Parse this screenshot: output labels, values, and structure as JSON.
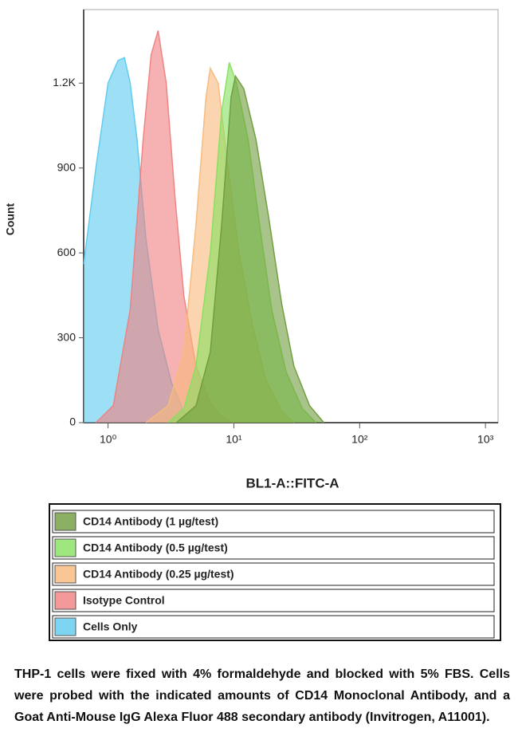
{
  "chart_data": {
    "type": "density",
    "ylabel": "Count",
    "xlabel": "BL1-A::FITC-A",
    "xscale": "log",
    "xlim": [
      0.64,
      1260
    ],
    "xticks": [
      {
        "value": 1,
        "label": "10⁰"
      },
      {
        "value": 10,
        "label": "10¹"
      },
      {
        "value": 100,
        "label": "10²"
      },
      {
        "value": 1000,
        "label": "10³"
      }
    ],
    "ylim": [
      0,
      1460
    ],
    "yticks": [
      0,
      300,
      600,
      900,
      {
        "value": 1200,
        "label": "1.2K"
      }
    ],
    "series": [
      {
        "name": "CD14 Antibody (1 µg/test)",
        "color": "#6e9c3c",
        "x": [
          3.5,
          5,
          6.5,
          8,
          9.5,
          10.3,
          12,
          15,
          19,
          24,
          30,
          40,
          52
        ],
        "values": [
          0,
          60,
          250,
          700,
          1150,
          1225,
          1180,
          1000,
          720,
          420,
          200,
          60,
          0
        ]
      },
      {
        "name": "CD14 Antibody (0.5 µg/test)",
        "color": "#86e05e",
        "x": [
          3,
          4,
          5,
          6.5,
          8,
          9.2,
          10.5,
          13,
          16,
          20,
          26,
          35,
          45
        ],
        "values": [
          0,
          50,
          200,
          600,
          1100,
          1273,
          1200,
          1000,
          700,
          400,
          180,
          50,
          0
        ]
      },
      {
        "name": "CD14 Antibody (0.25 µg/test)",
        "color": "#f8b97c",
        "x": [
          2,
          3,
          4,
          5,
          6,
          6.5,
          7.5,
          9,
          11,
          14,
          18,
          24,
          30
        ],
        "values": [
          0,
          60,
          250,
          700,
          1150,
          1253,
          1200,
          900,
          600,
          350,
          150,
          40,
          0
        ]
      },
      {
        "name": "Isotype Control",
        "color": "#f07f7f",
        "x": [
          0.8,
          1.1,
          1.5,
          1.9,
          2.2,
          2.5,
          2.9,
          3.4,
          4,
          5,
          6.5,
          8,
          10
        ],
        "values": [
          0,
          60,
          400,
          1000,
          1300,
          1386,
          1200,
          800,
          450,
          200,
          70,
          20,
          0
        ]
      },
      {
        "name": "Cells Only",
        "color": "#5ccaef",
        "x": [
          0.64,
          0.8,
          1.0,
          1.2,
          1.35,
          1.5,
          1.7,
          2.0,
          2.5,
          3.2,
          4,
          5
        ],
        "values": [
          560,
          900,
          1200,
          1280,
          1290,
          1200,
          1000,
          650,
          330,
          140,
          40,
          0
        ]
      }
    ],
    "caption": "THP-1 cells were fixed with 4% formaldehyde and blocked with 5% FBS. Cells were probed with the indicated amounts of CD14 Monoclonal Antibody, and a Goat Anti-Mouse IgG Alexa Fluor 488 secondary antibody (Invitrogen, A11001)."
  }
}
